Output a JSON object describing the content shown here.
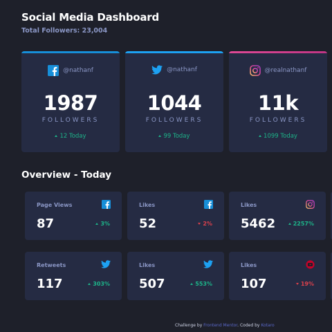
{
  "header": {
    "title": "Social Media Dashboard",
    "total_followers": "Total Followers: 23,004"
  },
  "colors": {
    "background": "#1e202a",
    "card": "#252b43",
    "muted_text": "#8b97c6",
    "up": "#1db489",
    "down": "#dc414c",
    "facebook": "#178fd9",
    "twitter": "#1da1f2",
    "instagram_gradient": [
      "#df4996",
      "#c13584"
    ],
    "youtube": "#c4032a"
  },
  "follower_cards": [
    {
      "platform_icon": "facebook-icon",
      "handle": "@nathanf",
      "count": "1987",
      "unit": "FOLLOWERS",
      "today": "12 Today",
      "trend": "up"
    },
    {
      "platform_icon": "twitter-icon",
      "handle": "@nathanf",
      "count": "1044",
      "unit": "FOLLOWERS",
      "today": "99 Today",
      "trend": "up"
    },
    {
      "platform_icon": "instagram-icon",
      "handle": "@realnathanf",
      "count": "11k",
      "unit": "FOLLOWERS",
      "today": "1099 Today",
      "trend": "up"
    }
  ],
  "overview": {
    "title": "Overview - Today",
    "cards": [
      {
        "label": "Page Views",
        "icon": "facebook-icon",
        "value": "87",
        "change": "3%",
        "trend": "up"
      },
      {
        "label": "Likes",
        "icon": "facebook-icon",
        "value": "52",
        "change": "2%",
        "trend": "down"
      },
      {
        "label": "Likes",
        "icon": "instagram-icon",
        "value": "5462",
        "change": "2257%",
        "trend": "up"
      },
      {
        "label": "Retweets",
        "icon": "twitter-icon",
        "value": "117",
        "change": "303%",
        "trend": "up"
      },
      {
        "label": "Likes",
        "icon": "twitter-icon",
        "value": "507",
        "change": "553%",
        "trend": "up"
      },
      {
        "label": "Likes",
        "icon": "youtube-icon",
        "value": "107",
        "change": "19%",
        "trend": "down"
      }
    ]
  },
  "footer": {
    "prefix": "Challenge by ",
    "challenge_link": "Frontend Mentor",
    "middle": ". Coded by ",
    "author_link": "Kotaro"
  }
}
